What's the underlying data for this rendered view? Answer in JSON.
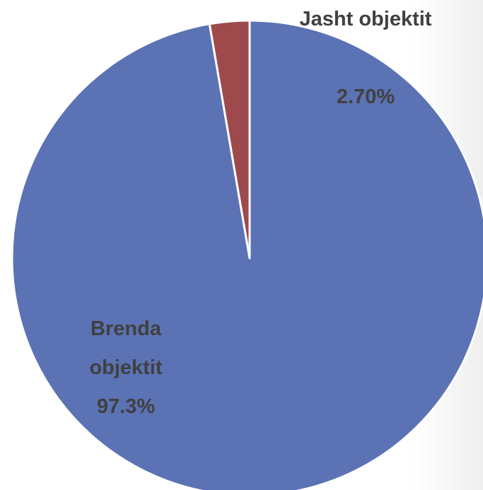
{
  "chart_data": {
    "type": "pie",
    "categories": [
      "Brenda objektit",
      "Jasht objektit"
    ],
    "values": [
      97.3,
      2.7
    ],
    "value_labels": [
      "97.3%",
      "2.70%"
    ],
    "colors": [
      "#5b73b4",
      "#9e4a4c"
    ]
  }
}
